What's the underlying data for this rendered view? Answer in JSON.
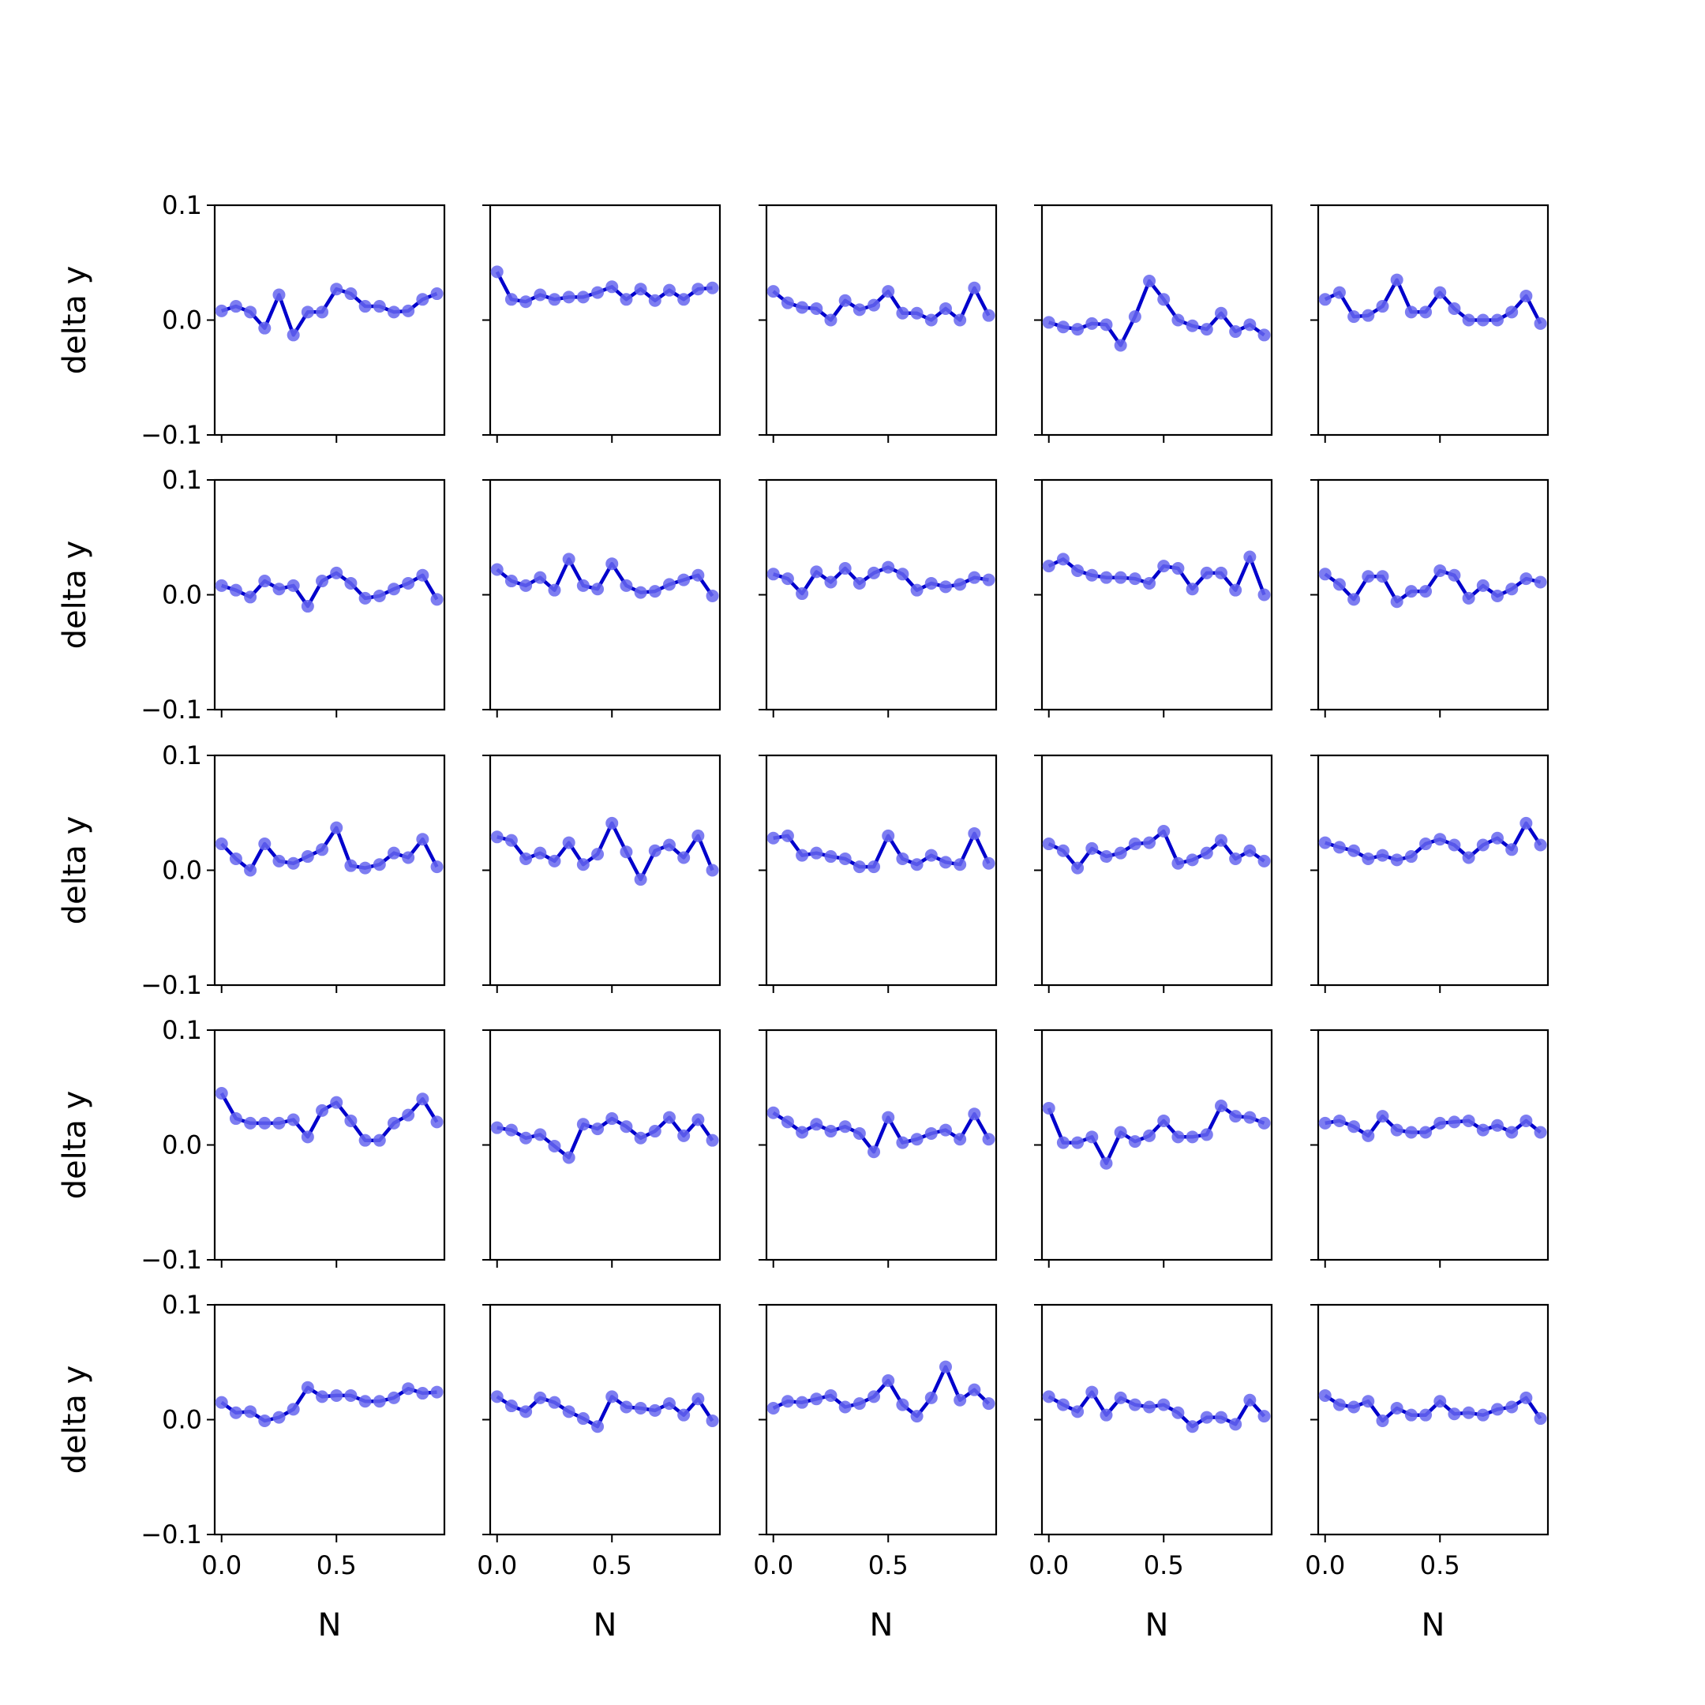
{
  "chart_data": {
    "type": "line",
    "layout": "5x5 grid of subplots",
    "xlabel": "N",
    "ylabel": "delta y",
    "xlim": [
      -0.03,
      0.97
    ],
    "ylim": [
      -0.1,
      0.1
    ],
    "x_ticks": [
      0.0,
      0.5
    ],
    "x_tick_labels": [
      "0.0",
      "0.5"
    ],
    "y_ticks": [
      -0.1,
      0.0,
      0.1
    ],
    "y_tick_labels": [
      "−0.1",
      "0.0",
      "0.1"
    ],
    "line_color": "#0000cc",
    "marker_color": "#6666ee",
    "x": [
      0.0,
      0.0625,
      0.125,
      0.1875,
      0.25,
      0.3125,
      0.375,
      0.4375,
      0.5,
      0.5625,
      0.625,
      0.6875,
      0.75,
      0.8125,
      0.875,
      0.9375
    ],
    "panels": [
      {
        "row": 1,
        "col": 1,
        "y": [
          0.008,
          0.012,
          0.007,
          -0.007,
          0.022,
          -0.013,
          0.007,
          0.007,
          0.027,
          0.023,
          0.012,
          0.012,
          0.007,
          0.008,
          0.018,
          0.023
        ]
      },
      {
        "row": 1,
        "col": 2,
        "y": [
          0.042,
          0.018,
          0.016,
          0.022,
          0.018,
          0.02,
          0.02,
          0.024,
          0.029,
          0.018,
          0.027,
          0.017,
          0.026,
          0.018,
          0.027,
          0.028
        ]
      },
      {
        "row": 1,
        "col": 3,
        "y": [
          0.025,
          0.015,
          0.011,
          0.01,
          0.0,
          0.017,
          0.009,
          0.013,
          0.025,
          0.006,
          0.006,
          0.0,
          0.01,
          0.0,
          0.028,
          0.004
        ]
      },
      {
        "row": 1,
        "col": 4,
        "y": [
          -0.002,
          -0.006,
          -0.008,
          -0.003,
          -0.004,
          -0.022,
          0.003,
          0.034,
          0.018,
          0.0,
          -0.005,
          -0.008,
          0.006,
          -0.01,
          -0.004,
          -0.013
        ]
      },
      {
        "row": 1,
        "col": 5,
        "y": [
          0.018,
          0.024,
          0.003,
          0.004,
          0.012,
          0.035,
          0.007,
          0.007,
          0.024,
          0.01,
          0.0,
          0.0,
          0.0,
          0.007,
          0.021,
          -0.003
        ]
      },
      {
        "row": 2,
        "col": 1,
        "y": [
          0.008,
          0.004,
          -0.002,
          0.012,
          0.005,
          0.008,
          -0.01,
          0.012,
          0.019,
          0.01,
          -0.003,
          -0.001,
          0.005,
          0.01,
          0.017,
          -0.004
        ]
      },
      {
        "row": 2,
        "col": 2,
        "y": [
          0.022,
          0.012,
          0.008,
          0.015,
          0.004,
          0.031,
          0.008,
          0.005,
          0.027,
          0.008,
          0.002,
          0.003,
          0.009,
          0.013,
          0.017,
          -0.001
        ]
      },
      {
        "row": 2,
        "col": 3,
        "y": [
          0.018,
          0.014,
          0.001,
          0.02,
          0.011,
          0.023,
          0.01,
          0.019,
          0.024,
          0.018,
          0.004,
          0.01,
          0.007,
          0.009,
          0.015,
          0.013
        ]
      },
      {
        "row": 2,
        "col": 4,
        "y": [
          0.025,
          0.031,
          0.021,
          0.017,
          0.015,
          0.015,
          0.014,
          0.01,
          0.025,
          0.023,
          0.005,
          0.019,
          0.019,
          0.004,
          0.033,
          0.0
        ]
      },
      {
        "row": 2,
        "col": 5,
        "y": [
          0.018,
          0.009,
          -0.004,
          0.016,
          0.016,
          -0.006,
          0.003,
          0.003,
          0.021,
          0.017,
          -0.003,
          0.008,
          -0.001,
          0.005,
          0.014,
          0.011
        ]
      },
      {
        "row": 3,
        "col": 1,
        "y": [
          0.023,
          0.01,
          0.0,
          0.023,
          0.008,
          0.006,
          0.012,
          0.018,
          0.037,
          0.004,
          0.002,
          0.005,
          0.015,
          0.011,
          0.027,
          0.003
        ]
      },
      {
        "row": 3,
        "col": 2,
        "y": [
          0.029,
          0.026,
          0.01,
          0.015,
          0.008,
          0.024,
          0.005,
          0.014,
          0.041,
          0.016,
          -0.008,
          0.017,
          0.022,
          0.011,
          0.03,
          0.0
        ]
      },
      {
        "row": 3,
        "col": 3,
        "y": [
          0.028,
          0.03,
          0.013,
          0.015,
          0.012,
          0.01,
          0.003,
          0.003,
          0.03,
          0.01,
          0.005,
          0.013,
          0.007,
          0.005,
          0.032,
          0.006
        ]
      },
      {
        "row": 3,
        "col": 4,
        "y": [
          0.023,
          0.017,
          0.002,
          0.019,
          0.012,
          0.015,
          0.023,
          0.024,
          0.034,
          0.006,
          0.009,
          0.015,
          0.026,
          0.01,
          0.017,
          0.008
        ]
      },
      {
        "row": 3,
        "col": 5,
        "y": [
          0.024,
          0.02,
          0.017,
          0.01,
          0.013,
          0.009,
          0.012,
          0.023,
          0.027,
          0.022,
          0.011,
          0.022,
          0.028,
          0.018,
          0.041,
          0.022
        ]
      },
      {
        "row": 4,
        "col": 1,
        "y": [
          0.045,
          0.023,
          0.019,
          0.019,
          0.019,
          0.022,
          0.007,
          0.03,
          0.037,
          0.021,
          0.004,
          0.004,
          0.019,
          0.026,
          0.04,
          0.02
        ]
      },
      {
        "row": 4,
        "col": 2,
        "y": [
          0.015,
          0.013,
          0.006,
          0.009,
          -0.001,
          -0.011,
          0.018,
          0.014,
          0.023,
          0.016,
          0.006,
          0.012,
          0.024,
          0.008,
          0.022,
          0.004
        ]
      },
      {
        "row": 4,
        "col": 3,
        "y": [
          0.028,
          0.02,
          0.011,
          0.018,
          0.012,
          0.016,
          0.01,
          -0.006,
          0.024,
          0.002,
          0.005,
          0.01,
          0.013,
          0.005,
          0.027,
          0.005
        ]
      },
      {
        "row": 4,
        "col": 4,
        "y": [
          0.032,
          0.002,
          0.002,
          0.007,
          -0.016,
          0.011,
          0.003,
          0.008,
          0.021,
          0.007,
          0.007,
          0.009,
          0.034,
          0.025,
          0.024,
          0.019
        ]
      },
      {
        "row": 4,
        "col": 5,
        "y": [
          0.019,
          0.021,
          0.016,
          0.008,
          0.025,
          0.013,
          0.011,
          0.011,
          0.019,
          0.02,
          0.021,
          0.013,
          0.017,
          0.011,
          0.021,
          0.011
        ]
      },
      {
        "row": 5,
        "col": 1,
        "y": [
          0.015,
          0.006,
          0.007,
          -0.001,
          0.002,
          0.009,
          0.028,
          0.02,
          0.021,
          0.021,
          0.016,
          0.016,
          0.019,
          0.027,
          0.023,
          0.024
        ]
      },
      {
        "row": 5,
        "col": 2,
        "y": [
          0.02,
          0.012,
          0.007,
          0.019,
          0.015,
          0.007,
          0.001,
          -0.006,
          0.02,
          0.011,
          0.01,
          0.008,
          0.014,
          0.004,
          0.018,
          -0.001
        ]
      },
      {
        "row": 5,
        "col": 3,
        "y": [
          0.01,
          0.016,
          0.015,
          0.018,
          0.021,
          0.011,
          0.014,
          0.02,
          0.034,
          0.013,
          0.003,
          0.019,
          0.046,
          0.017,
          0.026,
          0.014
        ]
      },
      {
        "row": 5,
        "col": 4,
        "y": [
          0.02,
          0.013,
          0.007,
          0.024,
          0.004,
          0.019,
          0.013,
          0.011,
          0.013,
          0.006,
          -0.006,
          0.002,
          0.002,
          -0.004,
          0.017,
          0.003
        ]
      },
      {
        "row": 5,
        "col": 5,
        "y": [
          0.021,
          0.013,
          0.011,
          0.016,
          -0.001,
          0.01,
          0.004,
          0.004,
          0.016,
          0.005,
          0.006,
          0.004,
          0.009,
          0.011,
          0.019,
          0.001
        ]
      }
    ]
  }
}
